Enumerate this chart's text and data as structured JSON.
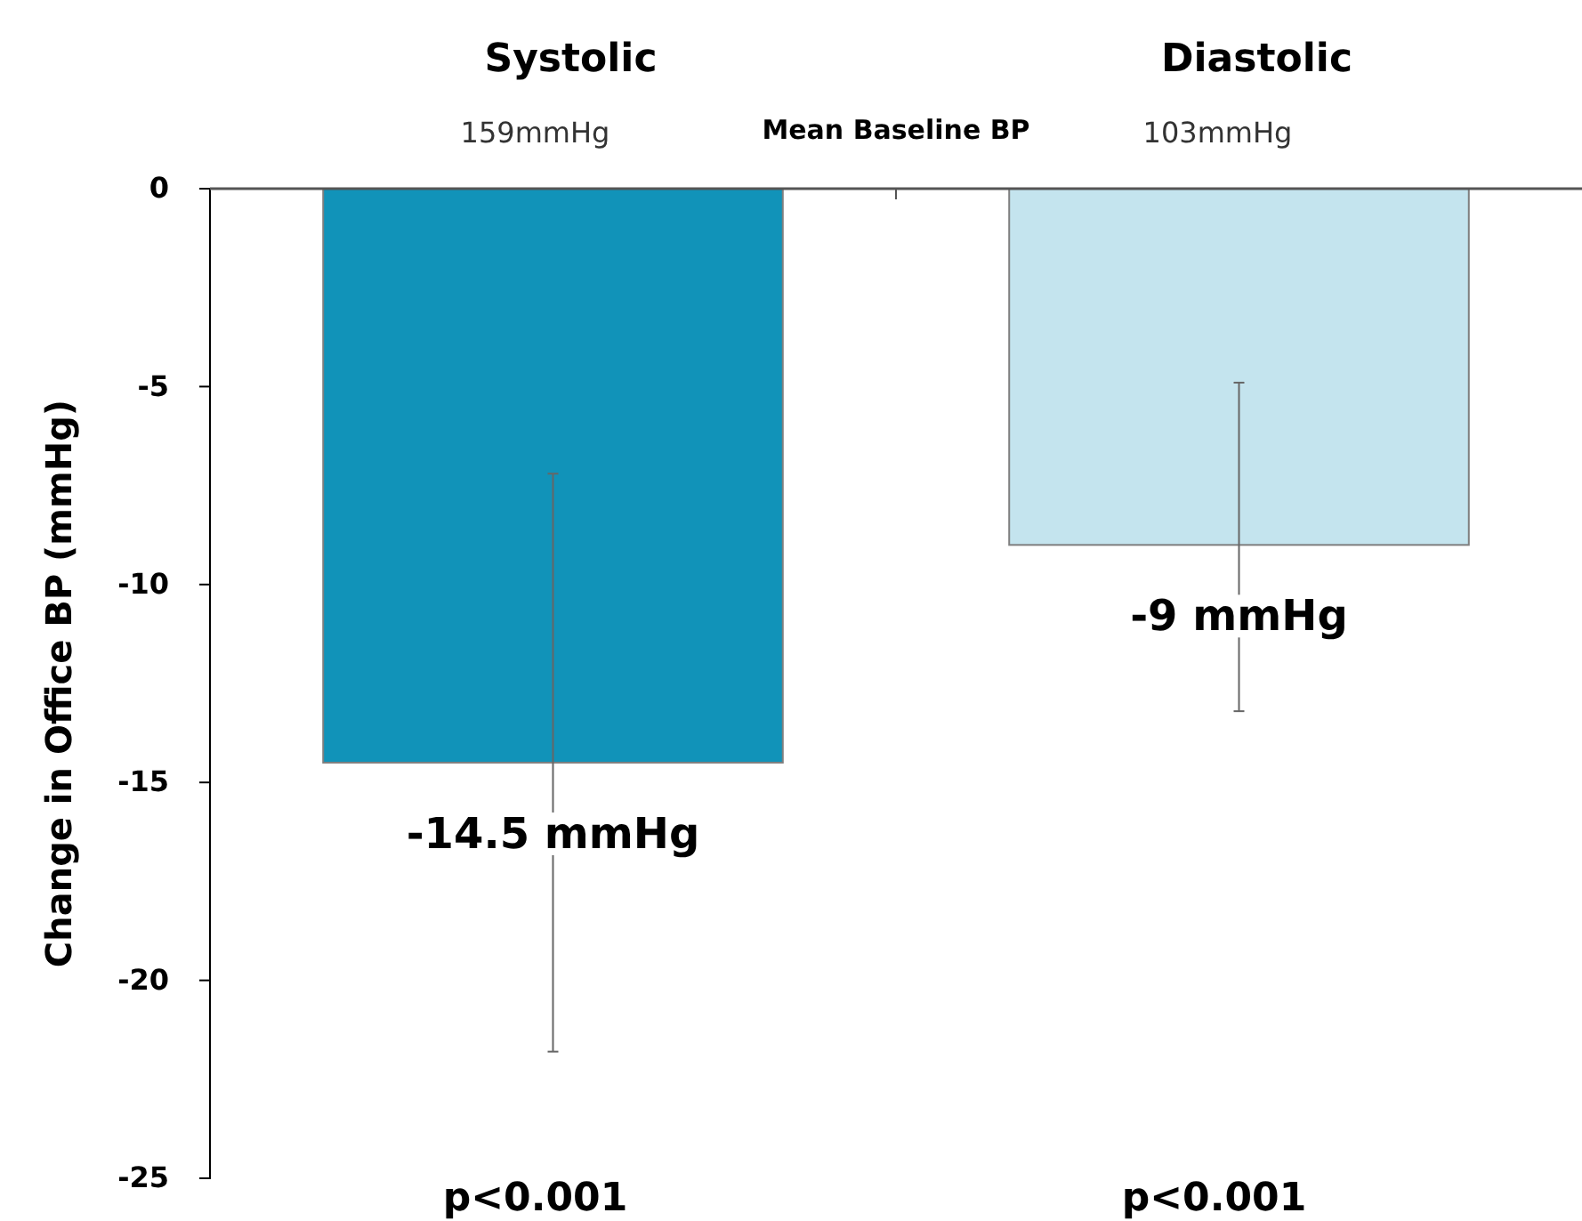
{
  "chart_data": {
    "type": "bar",
    "ylabel": "Change in Office BP (mmHg)",
    "categories": [
      "Systolic",
      "Diastolic"
    ],
    "values": [
      -14.5,
      -9
    ],
    "colors": [
      "#1193b9",
      "#c4e4ee"
    ],
    "errors": [
      [
        -21.8,
        -7.2
      ],
      [
        -13.2,
        -4.9
      ]
    ],
    "value_labels": [
      "-14.5 mmHg",
      "-9 mmHg"
    ],
    "ylim": [
      -25,
      0
    ],
    "yticks": [
      0,
      -5,
      -10,
      -15,
      -20,
      -25
    ],
    "annotations": [
      "159mmHg",
      "Mean Baseline BP",
      "103mmHg",
      "p<0.001",
      "p<0.001"
    ]
  }
}
